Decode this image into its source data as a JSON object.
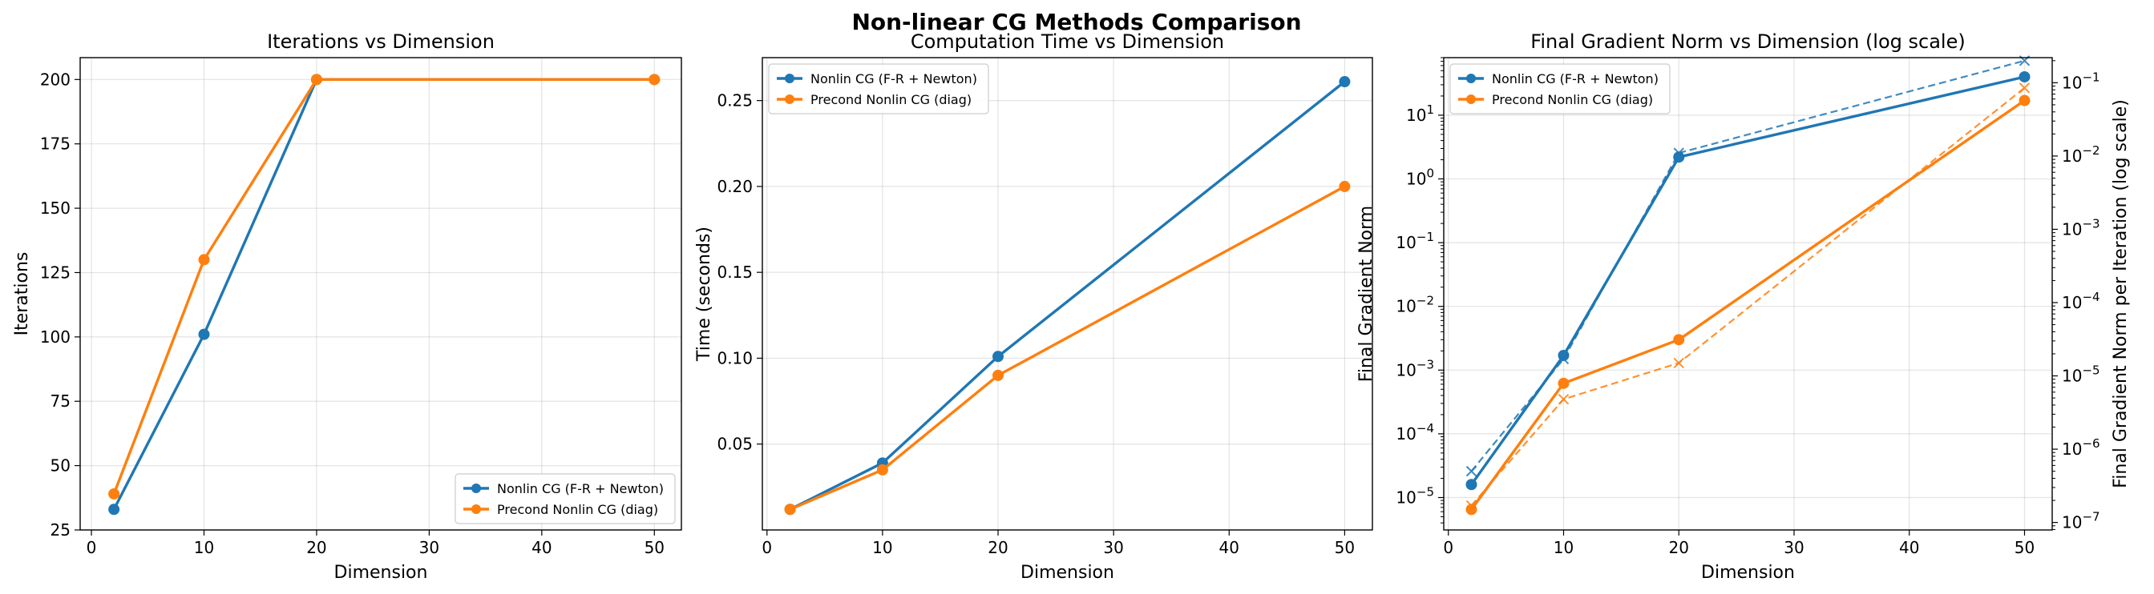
{
  "figure": {
    "suptitle": "Non-linear CG Methods Comparison",
    "colors": {
      "blue": "#1f77b4",
      "orange": "#ff7f0e"
    }
  },
  "chart_data": [
    {
      "type": "line",
      "title": "Iterations vs Dimension",
      "xlabel": "Dimension",
      "ylabel": "Iterations",
      "xlim": [
        -1,
        52.4
      ],
      "ylim": [
        25,
        208.5
      ],
      "xticks": [
        0,
        10,
        20,
        30,
        40,
        50
      ],
      "yticks": [
        25,
        50,
        75,
        100,
        125,
        150,
        175,
        200
      ],
      "grid": true,
      "legend_position": "lower-right",
      "x": [
        2,
        10,
        20,
        50
      ],
      "series": [
        {
          "name": "Nonlin CG (F-R + Newton)",
          "color": "#1f77b4",
          "marker": "o",
          "values": [
            33,
            101,
            200,
            200
          ]
        },
        {
          "name": "Precond Nonlin CG (diag)",
          "color": "#ff7f0e",
          "marker": "o",
          "values": [
            39,
            130,
            200,
            200
          ]
        }
      ]
    },
    {
      "type": "line",
      "title": "Computation Time vs Dimension",
      "xlabel": "Dimension",
      "ylabel": "Time (seconds)",
      "xlim": [
        -0.4,
        52.4
      ],
      "ylim": [
        0,
        0.275
      ],
      "xticks": [
        0,
        10,
        20,
        30,
        40,
        50
      ],
      "yticks": [
        0.05,
        0.1,
        0.15,
        0.2,
        0.25
      ],
      "ytick_labels": [
        "0.05",
        "0.10",
        "0.15",
        "0.20",
        "0.25"
      ],
      "grid": true,
      "legend_position": "upper-left",
      "x": [
        2,
        10,
        20,
        50
      ],
      "series": [
        {
          "name": "Nonlin CG (F-R + Newton)",
          "color": "#1f77b4",
          "marker": "o",
          "values": [
            0.012,
            0.039,
            0.101,
            0.261
          ]
        },
        {
          "name": "Precond Nonlin CG (diag)",
          "color": "#ff7f0e",
          "marker": "o",
          "values": [
            0.012,
            0.035,
            0.09,
            0.2
          ]
        }
      ]
    },
    {
      "type": "line",
      "title": "Final Gradient Norm vs Dimension (log scale)",
      "xlabel": "Dimension",
      "ylabel": "Final Gradient Norm",
      "ylabel_right": "Final Gradient Norm per Iteration (log scale)",
      "xlim": [
        -0.4,
        52.4
      ],
      "y_scale": "log",
      "ylim": [
        3.1e-06,
        80
      ],
      "ylim_right": [
        7.9e-08,
        0.22
      ],
      "yticks_exp": [
        -5,
        -4,
        -3,
        -2,
        -1,
        0,
        1
      ],
      "yticks_right_exp": [
        -7,
        -6,
        -5,
        -4,
        -3,
        -2,
        -1
      ],
      "xticks": [
        0,
        10,
        20,
        30,
        40,
        50
      ],
      "grid": true,
      "legend_position": "upper-left",
      "x": [
        2,
        10,
        20,
        50
      ],
      "series": [
        {
          "name": "Nonlin CG (F-R + Newton)",
          "color": "#1f77b4",
          "marker": "o",
          "axis": "left",
          "values": [
            1.6e-05,
            0.0017,
            2.2,
            40
          ]
        },
        {
          "name": "Precond Nonlin CG (diag)",
          "color": "#ff7f0e",
          "marker": "o",
          "axis": "left",
          "values": [
            6.5e-06,
            0.00062,
            0.003,
            17
          ]
        },
        {
          "color": "#1f77b4",
          "marker": "x",
          "dashed": true,
          "axis": "right",
          "values": [
            5e-07,
            1.7e-05,
            0.011,
            0.2
          ]
        },
        {
          "color": "#ff7f0e",
          "marker": "x",
          "dashed": true,
          "axis": "right",
          "values": [
            1.7e-07,
            4.8e-06,
            1.5e-05,
            0.085
          ]
        }
      ]
    }
  ]
}
